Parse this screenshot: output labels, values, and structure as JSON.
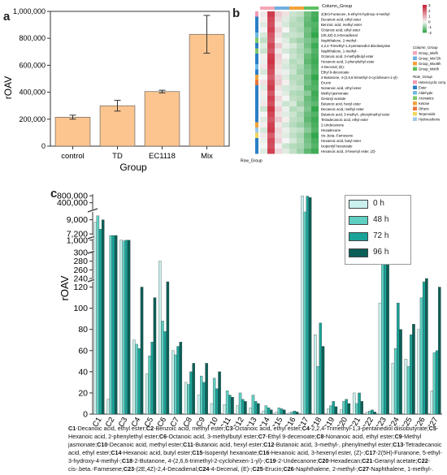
{
  "panel_labels": {
    "a": "a",
    "b": "b",
    "c": "c"
  },
  "chart_data": [
    {
      "type": "bar",
      "id": "panel-a",
      "categories": [
        "control",
        "TD",
        "EC1118",
        "Mix"
      ],
      "values": [
        215000,
        300000,
        405000,
        830000
      ],
      "errors": [
        15000,
        40000,
        10000,
        140000
      ],
      "yticks": [
        "0",
        "200,000",
        "400,000",
        "600,000",
        "800,000",
        "1,000,000"
      ],
      "ylim": [
        0,
        1000000
      ],
      "xlabel": "Group",
      "ylabel": "rOAV",
      "bar_color": "#fcc58f"
    },
    {
      "type": "heatmap",
      "id": "panel-b",
      "column_group_label": "Column_Group",
      "row_group_label": "Row_Group",
      "row_labels": [
        "2(3H)-Furanone, 5-ethyl-5-hydroxy-4-methyl-",
        "Decanoic acid, ethyl ester",
        "Benzoic acid, methyl ester",
        "Octanoic acid, ethyl ester",
        "(2E,4Z)-2,4-Decadienal",
        "Naphthalene, 2-methyl-",
        "2,2,4-Trimethyl-1,3-pentanediol diisobutyrate",
        "Naphthalene, 1-methyl-",
        "Octanoic acid, 3-methylbutyl ester",
        "Hexanoic acid, 2-phenylethyl ester",
        "4-Decenal, (E)-",
        "Ethyl 9-decenoate",
        "2-Butanone, 4-(2,6,6-trimethyl-2-cyclohexen-1-yl)-",
        "Erucin",
        "Nonanoic acid, ethyl ester",
        "Methyl jasmonate",
        "Geranyl acetate",
        "Butanoic acid, hexyl ester",
        "Decanoic acid, methyl ester",
        "Butanoic acid, 3-methyl-, phenylmethyl ester",
        "Tetradecanoic acid, ethyl ester",
        "2-Undecanone",
        "Hexadecane",
        "cis-.beta.-Farnesene",
        "Hexanoic acid, butyl ester",
        "Isopentyl hexanoate",
        "Hexanoic acid, 3-hexenyl ester, (Z)-"
      ],
      "scale_ticks": [
        "3",
        "2",
        "1",
        "0",
        "-1",
        "-2"
      ],
      "column_legend_title": "Column_Group",
      "column_groups": [
        {
          "name": "Group_Mixfh",
          "color": "#f4a6b7"
        },
        {
          "name": "Group_Mix72h",
          "color": "#6fb0e0"
        },
        {
          "name": "Group_Mix48h",
          "color": "#f2a33a"
        },
        {
          "name": "Group_Mix0h",
          "color": "#5fbf5f"
        }
      ],
      "row_legend_title": "Row_Group",
      "row_groups": [
        {
          "name": "Heterocyclic compound",
          "color": "#f29ab2"
        },
        {
          "name": "Ester",
          "color": "#2a7fc6"
        },
        {
          "name": "Aldehyde",
          "color": "#6fb9e6"
        },
        {
          "name": "Aromatics",
          "color": "#7fc66a"
        },
        {
          "name": "Ketone",
          "color": "#f0a13a"
        },
        {
          "name": "Others",
          "color": "#e8743b"
        },
        {
          "name": "Terpenoids",
          "color": "#f2d55c"
        },
        {
          "name": "Hydrocarbons",
          "color": "#9ec8e8"
        }
      ],
      "row_group_index": [
        0,
        1,
        1,
        1,
        2,
        3,
        1,
        3,
        1,
        1,
        2,
        1,
        4,
        5,
        1,
        1,
        1,
        1,
        1,
        1,
        1,
        4,
        7,
        6,
        1,
        1,
        1
      ],
      "cell_values": [
        [
          0.2,
          2.6,
          0.6,
          0.3,
          -0.4,
          -0.5,
          -1.2,
          -1.6
        ],
        [
          0.1,
          2.4,
          0.4,
          -0.2,
          -0.5,
          -0.7,
          -1.3,
          -1.7
        ],
        [
          -0.2,
          2.3,
          0.2,
          -0.3,
          -0.6,
          -0.6,
          -1.4,
          -1.5
        ],
        [
          0.0,
          2.5,
          0.5,
          0.0,
          -0.5,
          -0.7,
          -1.2,
          -1.6
        ],
        [
          -0.3,
          2.2,
          0.3,
          -0.4,
          -0.4,
          -0.5,
          -1.3,
          -1.8
        ],
        [
          -0.5,
          2.1,
          0.1,
          -0.2,
          -0.6,
          -0.8,
          -1.1,
          -1.4
        ],
        [
          -0.2,
          2.4,
          0.6,
          -0.1,
          -0.3,
          -0.6,
          -1.2,
          -1.7
        ],
        [
          -0.4,
          2.2,
          0.2,
          -0.3,
          -0.5,
          -0.7,
          -1.0,
          -1.5
        ],
        [
          0.1,
          2.6,
          0.5,
          0.0,
          -0.4,
          -0.6,
          -1.3,
          -1.6
        ],
        [
          -0.1,
          2.7,
          0.4,
          -0.2,
          -0.6,
          -0.5,
          -1.4,
          -1.7
        ],
        [
          0.2,
          2.5,
          0.3,
          -0.3,
          -0.5,
          -0.7,
          -1.2,
          -1.6
        ],
        [
          -0.3,
          2.3,
          0.2,
          -0.1,
          -0.4,
          -0.8,
          -1.1,
          -1.5
        ],
        [
          0.0,
          2.1,
          0.5,
          -0.2,
          -0.6,
          -0.6,
          -1.3,
          -1.8
        ],
        [
          0.3,
          2.4,
          0.6,
          0.1,
          -0.5,
          -0.7,
          -1.2,
          -1.6
        ],
        [
          -0.2,
          2.6,
          0.3,
          -0.3,
          -0.4,
          -0.5,
          -1.4,
          -1.5
        ],
        [
          0.1,
          2.2,
          0.1,
          -0.2,
          -0.6,
          -0.7,
          -1.0,
          -1.7
        ],
        [
          -0.1,
          2.5,
          0.4,
          0.0,
          -0.5,
          -0.6,
          -1.3,
          -1.6
        ],
        [
          0.2,
          2.3,
          0.2,
          -0.4,
          -0.3,
          -0.8,
          -1.2,
          -1.4
        ],
        [
          -0.4,
          2.7,
          0.5,
          -0.1,
          -0.6,
          -0.5,
          -1.1,
          -1.8
        ],
        [
          0.0,
          2.4,
          0.3,
          -0.2,
          -0.4,
          -0.7,
          -1.3,
          -1.5
        ],
        [
          -0.2,
          2.2,
          0.6,
          0.1,
          -0.5,
          -0.6,
          -1.4,
          -1.7
        ],
        [
          0.1,
          2.5,
          0.2,
          -0.3,
          -0.6,
          -0.8,
          -1.2,
          -1.6
        ],
        [
          -0.3,
          2.6,
          0.4,
          -0.1,
          -0.4,
          -0.5,
          -1.0,
          -1.5
        ],
        [
          0.2,
          2.1,
          0.3,
          -0.2,
          -0.5,
          -0.7,
          -1.3,
          -1.8
        ],
        [
          -0.1,
          2.4,
          0.5,
          0.0,
          -0.3,
          -0.6,
          -1.2,
          -1.6
        ],
        [
          0.0,
          2.3,
          0.1,
          -0.4,
          -0.6,
          -0.7,
          -1.1,
          -1.5
        ],
        [
          -0.2,
          2.5,
          0.4,
          -0.2,
          -0.5,
          -0.8,
          -1.4,
          -1.7
        ]
      ]
    },
    {
      "type": "bar",
      "id": "panel-c",
      "ylabel": "rOAV",
      "categories": [
        "C1",
        "C2",
        "C3",
        "C4",
        "C5",
        "C6",
        "C7",
        "C8",
        "C9",
        "C10",
        "C11",
        "C12",
        "C13",
        "C14",
        "C15",
        "C16",
        "C17",
        "C18",
        "C19",
        "C20",
        "C21",
        "C22",
        "C23",
        "C24",
        "C25",
        "C26",
        "C27"
      ],
      "series": [
        {
          "name": "0 h",
          "color": "#c9f0ec",
          "values": [
            8700,
            14,
            1000,
            70,
            38,
            280,
            60,
            30,
            18,
            10,
            9,
            8,
            6,
            3,
            2,
            1,
            800000,
            75,
            5,
            4,
            20,
            2,
            105,
            48,
            52,
            80,
            22
          ]
        },
        {
          "name": "48 h",
          "color": "#5fcfc3",
          "values": [
            9500,
            2000,
            950,
            66,
            55,
            88,
            56,
            28,
            36,
            34,
            22,
            20,
            18,
            8,
            6,
            2,
            10000,
            45,
            8,
            12,
            10,
            3,
            280,
            62,
            45,
            110,
            58
          ]
        },
        {
          "name": "72 h",
          "color": "#1aa398",
          "values": [
            7800,
            1500,
            1000,
            62,
            68,
            78,
            64,
            40,
            30,
            24,
            18,
            14,
            12,
            6,
            5,
            3,
            780000,
            86,
            12,
            14,
            20,
            4,
            275,
            105,
            75,
            125,
            60
          ]
        },
        {
          "name": "96 h",
          "color": "#0b5f57",
          "values": [
            9000,
            1500,
            1000,
            120,
            110,
            125,
            68,
            48,
            48,
            40,
            16,
            12,
            10,
            4,
            4,
            2,
            700000,
            64,
            7,
            10,
            12,
            2,
            290,
            80,
            85,
            130,
            120
          ]
        }
      ],
      "broken_axis": true,
      "ytick_labels": [
        "0",
        "20",
        "40",
        "60",
        "80",
        "100",
        "120",
        "240",
        "260",
        "280",
        "300",
        "1,000",
        "7,200",
        "9,000",
        "400,000",
        "800,000"
      ]
    }
  ],
  "abbreviations": [
    {
      "code": "C1",
      "name": "-Decanoic acid, ethyl ester;"
    },
    {
      "code": "C2",
      "name": "-Benzoic acid, methyl ester;"
    },
    {
      "code": "C3",
      "name": "-Octanoic acid, ethyl ester;"
    },
    {
      "code": "C4",
      "name": "-2,2,4-Trimethyl-1,3-pentanediol diisobutyrate;"
    },
    {
      "code": "C5",
      "name": "-Hexanoic acid, 2-phenylethyl ester;"
    },
    {
      "code": "C6",
      "name": "-Octanoic acid, 3-methylbutyl ester;"
    },
    {
      "code": "C7",
      "name": "-Ethyl 9-decenoate;"
    },
    {
      "code": "C8",
      "name": "-Nonanoic acid, ethyl ester;"
    },
    {
      "code": "C9",
      "name": "-Methyl jasmonate;"
    },
    {
      "code": "C10",
      "name": "-Decanoic acid, methyl ester;"
    },
    {
      "code": "C11",
      "name": "-Butanoic acid, hexyl ester;"
    },
    {
      "code": "C12",
      "name": "-Butanoic acid, 3-methyl-, phenylmethyl ester;"
    },
    {
      "code": "C13",
      "name": "-Tetradecanoic acid, ethyl ester;"
    },
    {
      "code": "C14",
      "name": "-Hexanoic acid, butyl ester;"
    },
    {
      "code": "C15",
      "name": "-Isopentyl hexanoate;"
    },
    {
      "code": "C16",
      "name": "-Hexanoic acid, 3-hexenyl ester, (Z)-;"
    },
    {
      "code": "C17",
      "name": "-2(5H)-Furanone, 5-ethyl-3-hydroxy-4-methyl-;"
    },
    {
      "code": "C18",
      "name": "-2-Butanone, 4-(2,6,6-trimethyl-2-cyclohexen-1-yl)-;"
    },
    {
      "code": "C19",
      "name": "-2-Undecanone;"
    },
    {
      "code": "C20",
      "name": "-Hexadecan;"
    },
    {
      "code": "C21",
      "name": "-Geranyl acetate;"
    },
    {
      "code": "C22",
      "name": "-cis-.beta.-Farnesene;"
    },
    {
      "code": "C23",
      "name": "-(2E,4Z)-2,4-Decadienal;"
    },
    {
      "code": "C24",
      "name": "-4-Decenal, (E)-;"
    },
    {
      "code": "C25",
      "name": "-Erucin;"
    },
    {
      "code": "C26",
      "name": "-Naphthalene, 2-methyl-;"
    },
    {
      "code": "C27",
      "name": "-Naphthalene, 1-methyl-."
    }
  ]
}
